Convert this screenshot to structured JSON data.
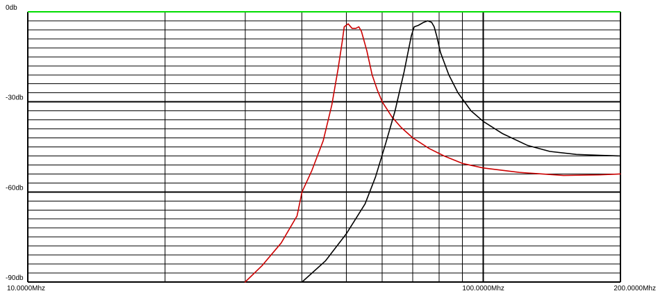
{
  "chart_data": {
    "type": "line",
    "title": "",
    "xlabel": "",
    "ylabel": "",
    "x_scale": "log",
    "xlim_mhz": [
      10,
      200
    ],
    "ylim_db": [
      -90,
      0
    ],
    "grid": true,
    "y_ticks": [
      {
        "value": 0,
        "label": "0db"
      },
      {
        "value": -30,
        "label": "-30db"
      },
      {
        "value": -60,
        "label": "-60db"
      },
      {
        "value": -90,
        "label": "-90db"
      }
    ],
    "x_ticks": [
      {
        "value": 10,
        "label": "10.0000Mhz"
      },
      {
        "value": 100,
        "label": "100.0000Mhz"
      },
      {
        "value": 200,
        "label": "200.0000Mhz"
      }
    ],
    "colors": {
      "grid": "#000000",
      "top_line": "#00dd00",
      "red_series": "#cc0000",
      "black_series": "#000000"
    },
    "series": [
      {
        "color": "#cc0000",
        "points": [
          [
            30.0,
            -90
          ],
          [
            32.7,
            -84.5
          ],
          [
            36.0,
            -77
          ],
          [
            39.0,
            -68
          ],
          [
            40.0,
            -60
          ],
          [
            42.0,
            -53
          ],
          [
            44.5,
            -43
          ],
          [
            46.5,
            -31
          ],
          [
            48.0,
            -19
          ],
          [
            49.0,
            -10
          ],
          [
            49.5,
            -5
          ],
          [
            50.5,
            -4
          ],
          [
            51.5,
            -5.5
          ],
          [
            52.5,
            -5.5
          ],
          [
            53.3,
            -5
          ],
          [
            54.0,
            -6.5
          ],
          [
            55.5,
            -13
          ],
          [
            57.0,
            -21
          ],
          [
            58.5,
            -26
          ],
          [
            60.0,
            -30
          ],
          [
            63.0,
            -35
          ],
          [
            66.0,
            -38.5
          ],
          [
            70.0,
            -42
          ],
          [
            76.0,
            -45.5
          ],
          [
            82.0,
            -48
          ],
          [
            90.0,
            -50.5
          ],
          [
            100.0,
            -52
          ],
          [
            120.0,
            -53.5
          ],
          [
            150.0,
            -54.5
          ],
          [
            180.0,
            -54.3
          ],
          [
            200.0,
            -54
          ]
        ]
      },
      {
        "color": "#000000",
        "points": [
          [
            40.0,
            -90
          ],
          [
            45.0,
            -83
          ],
          [
            50.0,
            -74
          ],
          [
            55.0,
            -64
          ],
          [
            58.0,
            -55
          ],
          [
            61.0,
            -44
          ],
          [
            64.0,
            -33
          ],
          [
            67.0,
            -20
          ],
          [
            69.5,
            -8
          ],
          [
            70.5,
            -5
          ],
          [
            72.0,
            -4.5
          ],
          [
            74.0,
            -3.5
          ],
          [
            75.5,
            -3
          ],
          [
            77.0,
            -3.5
          ],
          [
            78.0,
            -5
          ],
          [
            79.0,
            -8
          ],
          [
            80.5,
            -13.5
          ],
          [
            84.0,
            -21
          ],
          [
            88.0,
            -27
          ],
          [
            94.0,
            -33
          ],
          [
            100.0,
            -36.5
          ],
          [
            110.0,
            -40.5
          ],
          [
            125.0,
            -44.5
          ],
          [
            140.0,
            -46.5
          ],
          [
            160.0,
            -47.5
          ],
          [
            180.0,
            -47.8
          ],
          [
            200.0,
            -48
          ]
        ]
      }
    ]
  }
}
